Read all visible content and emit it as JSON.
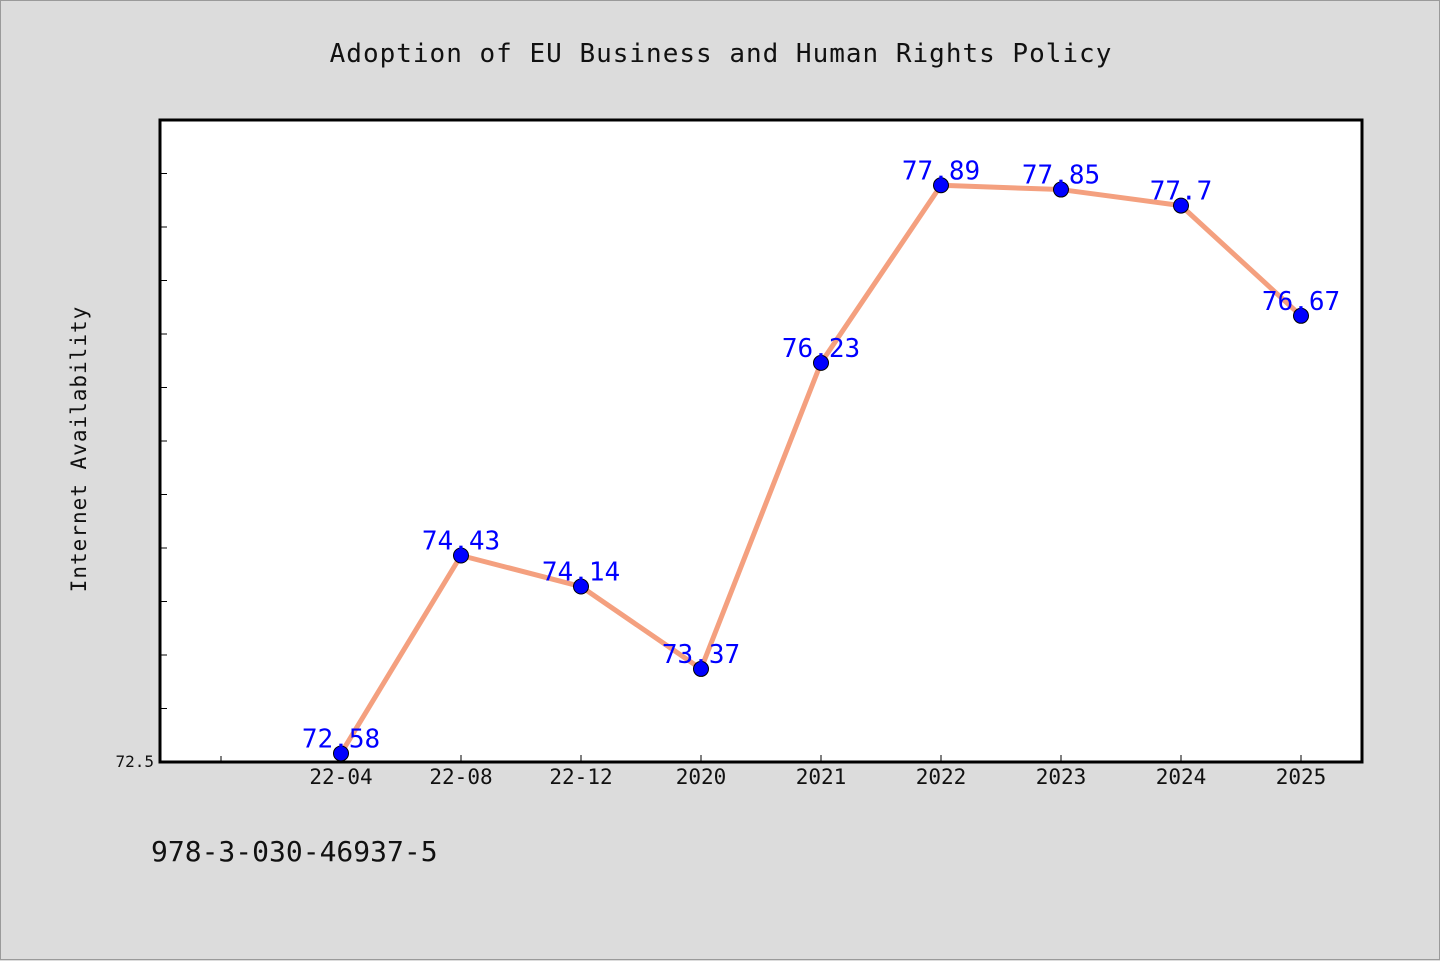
{
  "chart_data": {
    "type": "line",
    "title": "Adoption of EU Business and Human Rights Policy",
    "xlabel": "",
    "ylabel": "Internet Availability",
    "categories": [
      "22-04",
      "22-08",
      "22-12",
      "2020",
      "2021",
      "2022",
      "2023",
      "2024",
      "2025"
    ],
    "series": [
      {
        "values": [
          72.58,
          74.43,
          74.14,
          73.37,
          76.23,
          77.89,
          77.85,
          77.7,
          76.67
        ],
        "data_labels": [
          "72.58",
          "74.43",
          "74.14",
          "73.37",
          "76.23",
          "77.89",
          "77.85",
          "77.7",
          "76.67"
        ]
      }
    ],
    "ylim": [
      72.5,
      78.5
    ],
    "yticks_labeled": [
      "72.5"
    ],
    "grid": false,
    "legend": "none",
    "colors": {
      "line": "#f4a07f",
      "marker": "#0000ff",
      "label": "#0000ff",
      "background": "#dcdcdc",
      "plot_bg": "#ffffff"
    }
  },
  "footer": {
    "isbn": "978-3-030-46937-5"
  }
}
